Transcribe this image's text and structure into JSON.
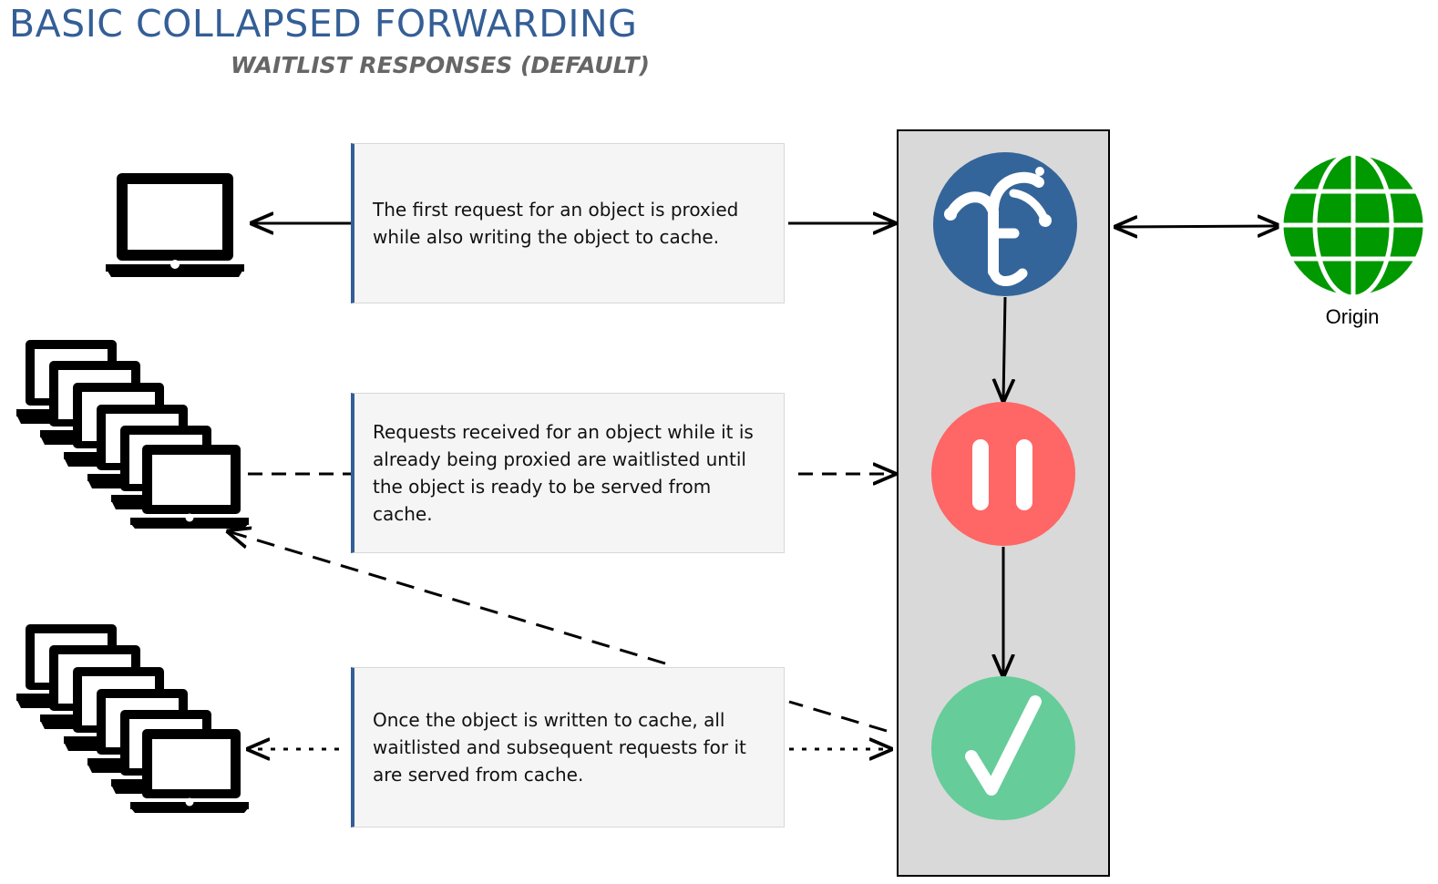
{
  "title": "BASIC COLLAPSED FORWARDING",
  "subtitle": "WAITLIST RESPONSES (DEFAULT)",
  "steps": [
    {
      "text": "The first request for an object is proxied while also writing the object to cache.",
      "icon": "fastly-logo-icon",
      "arrow_style": "solid"
    },
    {
      "text": "Requests received for an object while it is already being proxied are waitlisted until the object is ready to be served from cache.",
      "icon": "pause-icon",
      "arrow_style": "dashed"
    },
    {
      "text": "Once the object is written to cache, all waitlisted and subsequent requests for it are served from cache.",
      "icon": "checkmark-icon",
      "arrow_style": "dotted"
    }
  ],
  "origin": {
    "label": "Origin",
    "icon": "globe-icon"
  },
  "colors": {
    "title": "#345e96",
    "subtitle": "#666666",
    "fastly_circle": "#34659a",
    "pause_circle": "#ff6666",
    "check_circle": "#66cc99",
    "globe": "#009900",
    "panel": "#d9d9d9",
    "textbox_bg": "#f5f5f5",
    "textbox_accent": "#345e96"
  }
}
